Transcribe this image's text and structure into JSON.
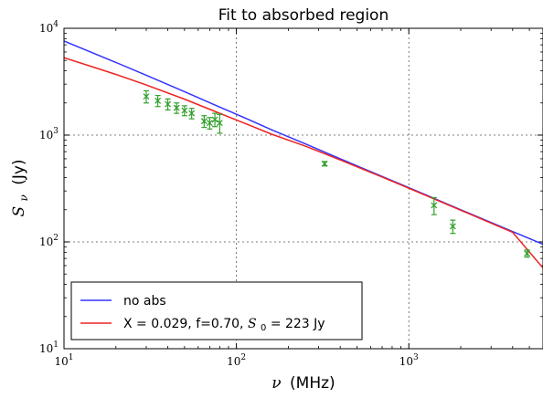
{
  "chart_data": {
    "type": "line",
    "title": "Fit to absorbed region",
    "xlabel_symbol": "ν",
    "xlabel_unit": "(MHz)",
    "ylabel_symbol": "S",
    "ylabel_sub": "ν",
    "ylabel_unit": "(Jy)",
    "xscale": "log",
    "yscale": "log",
    "xlim": [
      10,
      6000
    ],
    "ylim": [
      10,
      10000
    ],
    "grid": true,
    "legend_position": "lower-left",
    "x_ticks": [
      {
        "base": "10",
        "exp": "1",
        "value": 10
      },
      {
        "base": "10",
        "exp": "2",
        "value": 100
      },
      {
        "base": "10",
        "exp": "3",
        "value": 1000
      }
    ],
    "y_ticks": [
      {
        "base": "10",
        "exp": "1",
        "value": 10
      },
      {
        "base": "10",
        "exp": "2",
        "value": 100
      },
      {
        "base": "10",
        "exp": "3",
        "value": 1000
      },
      {
        "base": "10",
        "exp": "4",
        "value": 10000
      }
    ],
    "series": [
      {
        "name": "no abs",
        "color": "#3333ff",
        "x": [
          10,
          15,
          20,
          30,
          50,
          80,
          120,
          160,
          250,
          400,
          700,
          1000,
          2000,
          4000,
          6000
        ],
        "y": [
          7600,
          5800,
          4790,
          3630,
          2550,
          1830,
          1380,
          1120,
          830,
          600,
          410,
          322,
          200,
          125,
          95
        ]
      },
      {
        "name_prefix": "X = 0.029, f=0.70, ",
        "name_symbol": "S",
        "name_sub": "0",
        "name_suffix": " = 223 Jy",
        "color": "#ee2222",
        "x": [
          10,
          15,
          20,
          30,
          50,
          80,
          120,
          160,
          250,
          400,
          700,
          1000,
          2000,
          4000,
          6000
        ],
        "y": [
          5300,
          4300,
          3700,
          2950,
          2170,
          1600,
          1230,
          1020,
          790,
          585,
          405,
          318,
          198,
          123,
          57
        ]
      }
    ],
    "observations": {
      "color": "#33a02c",
      "points": [
        {
          "x": 30,
          "y": 2300,
          "err": 300
        },
        {
          "x": 35,
          "y": 2100,
          "err": 250
        },
        {
          "x": 40,
          "y": 1950,
          "err": 230
        },
        {
          "x": 45,
          "y": 1800,
          "err": 200
        },
        {
          "x": 50,
          "y": 1700,
          "err": 180
        },
        {
          "x": 55,
          "y": 1600,
          "err": 180
        },
        {
          "x": 65,
          "y": 1350,
          "err": 170
        },
        {
          "x": 70,
          "y": 1300,
          "err": 160
        },
        {
          "x": 75,
          "y": 1400,
          "err": 200
        },
        {
          "x": 80,
          "y": 1300,
          "err": 260
        },
        {
          "x": 325,
          "y": 540,
          "err": 25
        },
        {
          "x": 1400,
          "y": 220,
          "err": 40
        },
        {
          "x": 1800,
          "y": 140,
          "err": 20
        },
        {
          "x": 4850,
          "y": 78,
          "err": 6
        }
      ]
    }
  }
}
